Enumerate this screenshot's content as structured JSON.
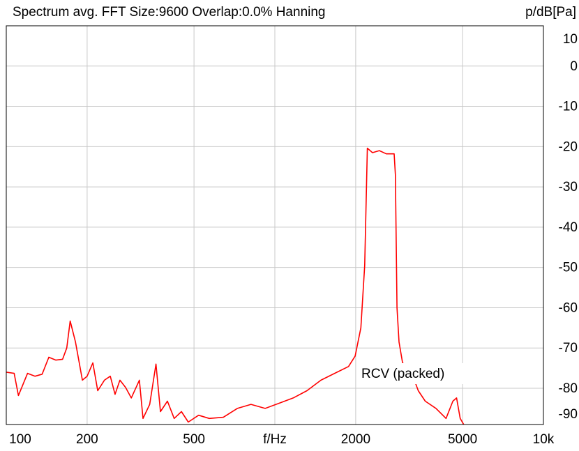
{
  "chart_data": {
    "type": "line",
    "title": "Spectrum avg.  FFT Size:9600  Overlap:0.0%  Hanning",
    "ylabel": "p/dB[Pa]",
    "annotation": "RCV (packed)",
    "log_x": true,
    "grid": true,
    "xlim": [
      100,
      10000
    ],
    "xticks": [
      100,
      200,
      500,
      {
        "value": 1000,
        "label": "f/Hz"
      },
      2000,
      5000,
      {
        "value": 10000,
        "label": "10k"
      }
    ],
    "ylim": [
      -89,
      10
    ],
    "yticks": [
      10,
      0,
      -10,
      -20,
      -30,
      -40,
      -50,
      -60,
      -70,
      -80,
      -90
    ],
    "series": [
      {
        "color": "#ff0000",
        "x": [
          100,
          107,
          111,
          120,
          128,
          136,
          144,
          153,
          162,
          168,
          173,
          181,
          192,
          200,
          210,
          219,
          232,
          244,
          254,
          265,
          278,
          292,
          313,
          323,
          342,
          361,
          375,
          398,
          422,
          449,
          476,
          520,
          570,
          643,
          725,
          815,
          920,
          1039,
          1170,
          1317,
          1485,
          1670,
          1880,
          1990,
          2090,
          2160,
          2210,
          2310,
          2450,
          2600,
          2780,
          2810,
          2850,
          2900,
          2990,
          3200,
          3420,
          3630,
          3980,
          4340,
          4600,
          4750,
          4900,
          5050
        ],
        "values": [
          -76,
          -76.3,
          -81.8,
          -76.3,
          -77,
          -76.5,
          -72.3,
          -73,
          -72.8,
          -70,
          -63.3,
          -68.5,
          -78,
          -77,
          -73.7,
          -80.6,
          -78,
          -77,
          -81.5,
          -78,
          -79.8,
          -82.4,
          -78,
          -87.5,
          -84,
          -74,
          -85.8,
          -83.2,
          -87.5,
          -85.8,
          -88.4,
          -86.7,
          -87.5,
          -87.2,
          -85,
          -84,
          -85,
          -83.7,
          -82.4,
          -80.6,
          -78,
          -76.3,
          -74.6,
          -72,
          -65,
          -49.5,
          -20.4,
          -21.5,
          -21,
          -21.8,
          -21.8,
          -27,
          -60,
          -68.5,
          -73.7,
          -75.4,
          -80.6,
          -83.2,
          -85,
          -87.5,
          -83.2,
          -82.4,
          -87.5,
          -89
        ]
      }
    ]
  }
}
